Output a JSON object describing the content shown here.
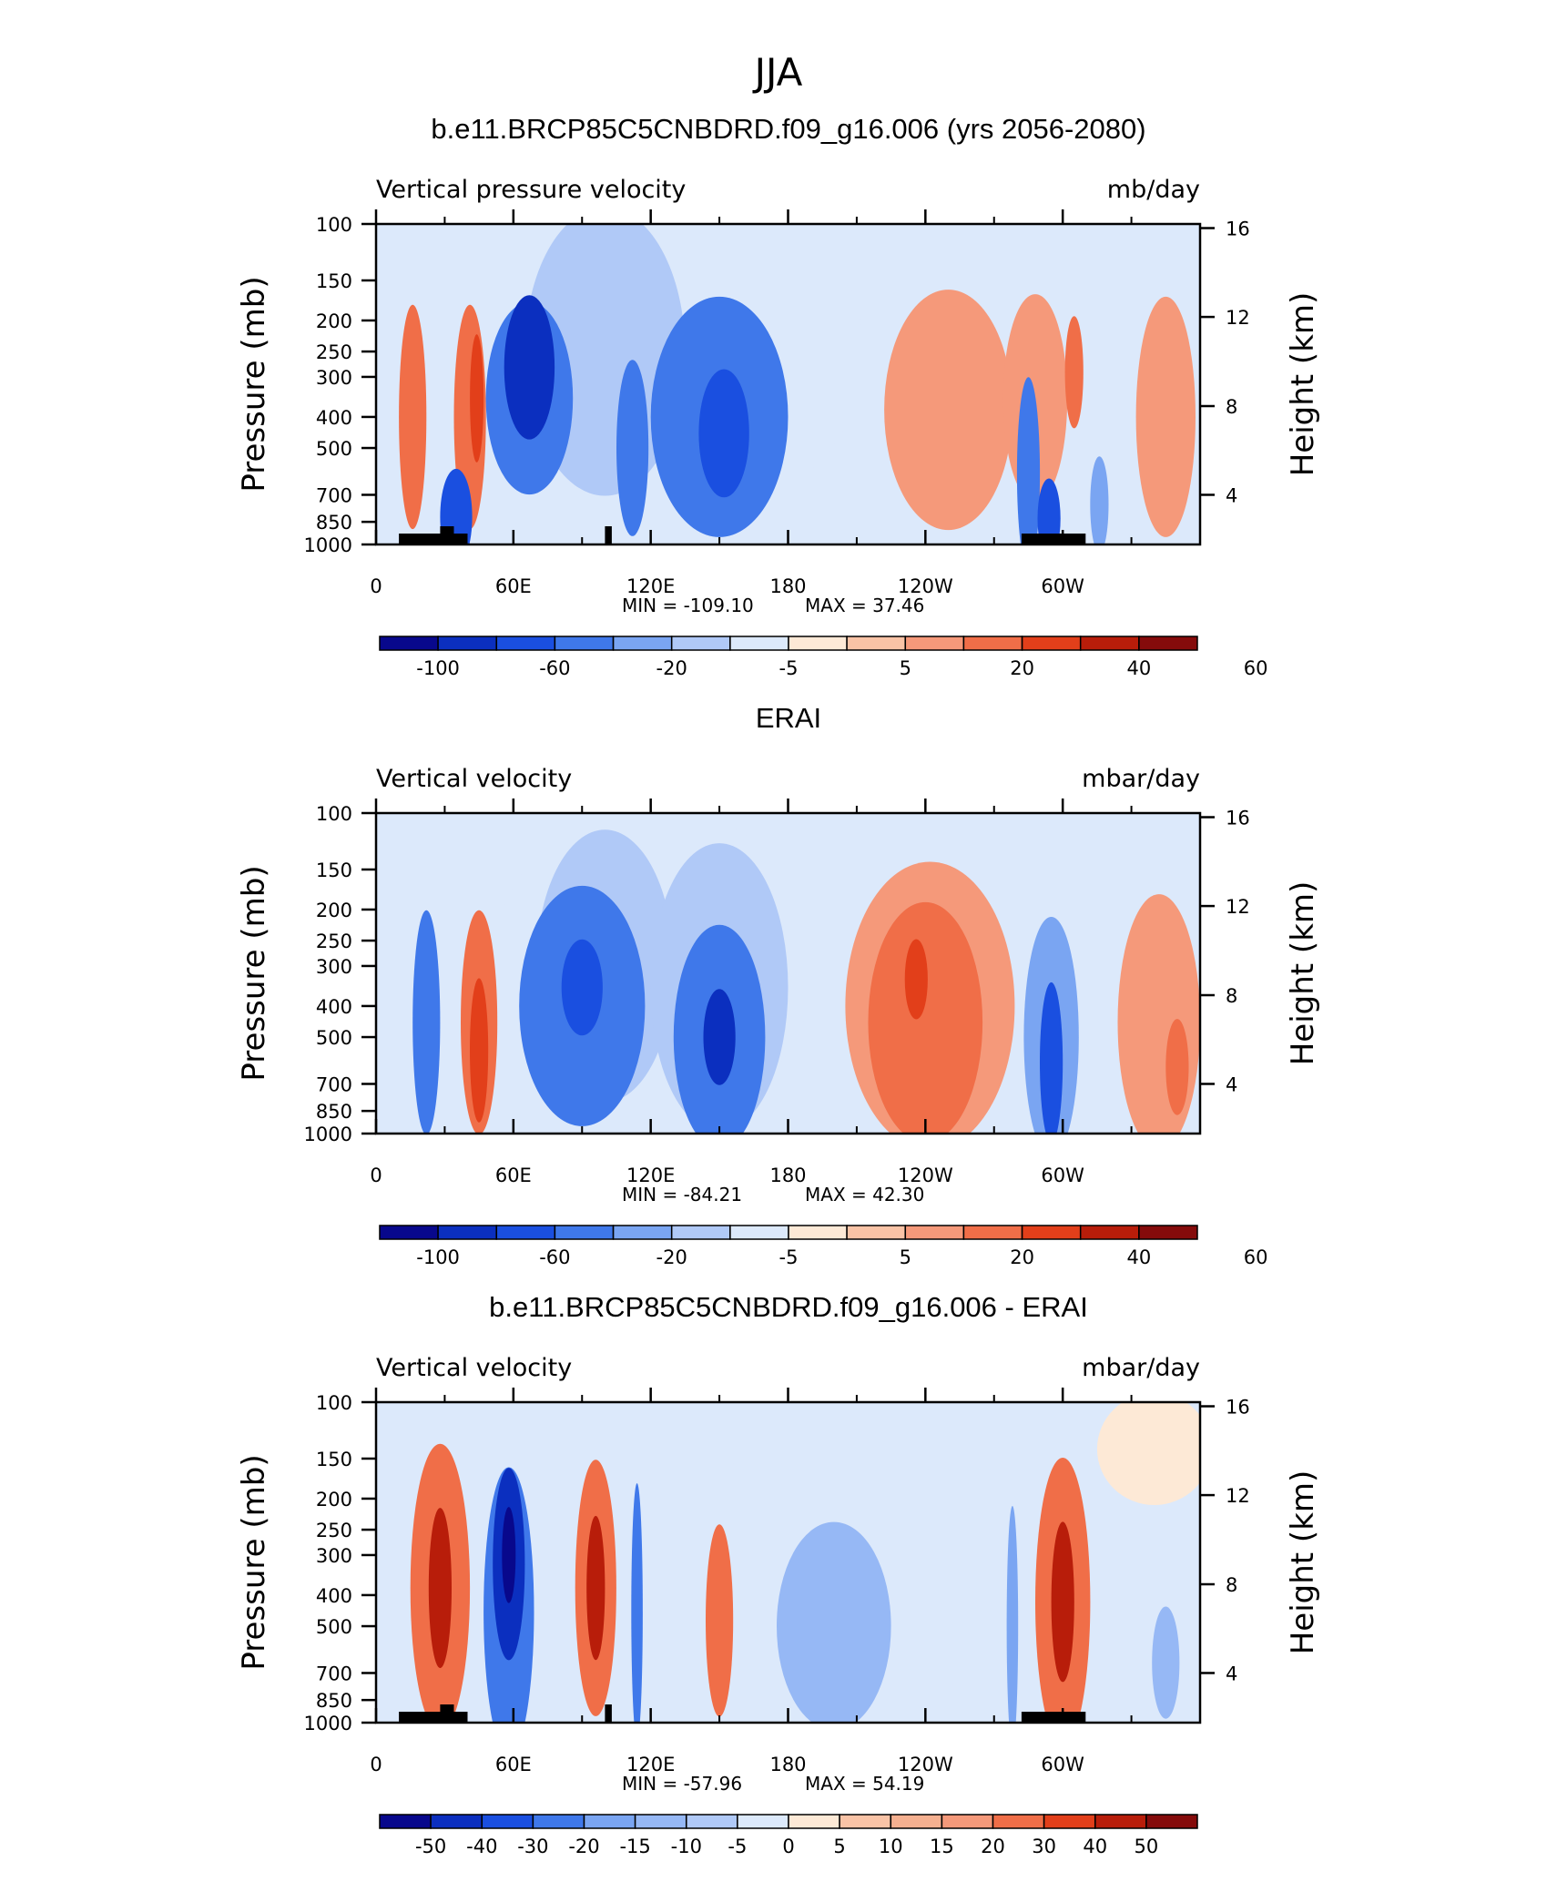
{
  "figure": {
    "title": "JJA",
    "colors": {
      "fourteen_levels": [
        "#08088c",
        "#0b2fbf",
        "#1a4fe0",
        "#3f78ea",
        "#7aa5f2",
        "#b0c9f7",
        "#dce9fb",
        "#fde9d6",
        "#f9c3a6",
        "#f5997a",
        "#f06e48",
        "#e23f1a",
        "#b81d0a",
        "#850b0b"
      ],
      "sixteen_levels": [
        "#08088c",
        "#0b2fbf",
        "#1a4fe0",
        "#3f78ea",
        "#7aa5f2",
        "#96b8f5",
        "#b0c9f7",
        "#dce9fb",
        "#fde9d6",
        "#f9c3a6",
        "#f5b090",
        "#f5997a",
        "#f06e48",
        "#e23f1a",
        "#b81d0a",
        "#850b0b"
      ]
    }
  },
  "chart_data": [
    {
      "type": "heatmap",
      "panel_title": "b.e11.BRCP85C5CNBDRD.f09_g16.006 (yrs 2056-2080)",
      "variable": "Vertical pressure velocity",
      "units": "mb/day",
      "ylabel": "Pressure (mb)",
      "ylabel_right": "Height (km)",
      "x_ticks": [
        "0",
        "60E",
        "120E",
        "180",
        "120W",
        "60W"
      ],
      "x_range_deg": [
        0,
        360
      ],
      "y_ticks": [
        "100",
        "150",
        "200",
        "250",
        "300",
        "400",
        "500",
        "700",
        "850",
        "1000"
      ],
      "y_range": [
        100,
        1000
      ],
      "log_scale_y": true,
      "height_ticks": [
        "16",
        "12",
        "8",
        "4"
      ],
      "min_text": "MIN = -109.10",
      "max_text": "MAX = 37.46",
      "colorbar_labels": [
        "-100",
        "-60",
        "-20",
        "-5",
        "5",
        "20",
        "40",
        "60"
      ],
      "colorbar_label_boxes": [
        1,
        3,
        5,
        7,
        9,
        11,
        13,
        15
      ],
      "palette": "fourteen_levels",
      "features": [
        {
          "lon": 67,
          "p": 280,
          "width_deg": 22,
          "depth": 0.9,
          "level": 1
        },
        {
          "lon": 67,
          "p": 350,
          "width_deg": 38,
          "depth": 1.2,
          "level": 3
        },
        {
          "lon": 150,
          "p": 400,
          "width_deg": 60,
          "depth": 1.5,
          "level": 3
        },
        {
          "lon": 152,
          "p": 450,
          "width_deg": 22,
          "depth": 0.8,
          "level": 2
        },
        {
          "lon": 112,
          "p": 500,
          "width_deg": 14,
          "depth": 1.1,
          "level": 3
        },
        {
          "lon": 100,
          "p": 250,
          "width_deg": 70,
          "depth": 1.8,
          "level": 5
        },
        {
          "lon": 143,
          "p": 250,
          "width_deg": 140,
          "depth": 2.0,
          "level": 6
        },
        {
          "lon": 285,
          "p": 600,
          "width_deg": 10,
          "depth": 1.2,
          "level": 3
        },
        {
          "lon": 316,
          "p": 750,
          "width_deg": 8,
          "depth": 0.6,
          "level": 4
        },
        {
          "lon": 16,
          "p": 400,
          "width_deg": 12,
          "depth": 1.4,
          "level": 10
        },
        {
          "lon": 41,
          "p": 400,
          "width_deg": 14,
          "depth": 1.4,
          "level": 10
        },
        {
          "lon": 44,
          "p": 350,
          "width_deg": 6,
          "depth": 0.8,
          "level": 11
        },
        {
          "lon": 250,
          "p": 380,
          "width_deg": 56,
          "depth": 1.5,
          "level": 9
        },
        {
          "lon": 288,
          "p": 350,
          "width_deg": 28,
          "depth": 1.3,
          "level": 9
        },
        {
          "lon": 305,
          "p": 290,
          "width_deg": 8,
          "depth": 0.7,
          "level": 10
        },
        {
          "lon": 345,
          "p": 400,
          "width_deg": 26,
          "depth": 1.5,
          "level": 9
        },
        {
          "lon": 35,
          "p": 820,
          "width_deg": 14,
          "depth": 0.6,
          "level": 2
        },
        {
          "lon": 294,
          "p": 830,
          "width_deg": 10,
          "depth": 0.5,
          "level": 2
        }
      ],
      "land_bars": [
        [
          10,
          40
        ],
        [
          28,
          34
        ],
        [
          100,
          103
        ],
        [
          282,
          310
        ]
      ]
    },
    {
      "type": "heatmap",
      "panel_title": "ERAI",
      "variable": "Vertical velocity",
      "units": "mbar/day",
      "ylabel": "Pressure (mb)",
      "ylabel_right": "Height (km)",
      "x_ticks": [
        "0",
        "60E",
        "120E",
        "180",
        "120W",
        "60W"
      ],
      "x_range_deg": [
        0,
        360
      ],
      "y_ticks": [
        "100",
        "150",
        "200",
        "250",
        "300",
        "400",
        "500",
        "700",
        "850",
        "1000"
      ],
      "y_range": [
        100,
        1000
      ],
      "log_scale_y": true,
      "height_ticks": [
        "16",
        "12",
        "8",
        "4"
      ],
      "min_text": "MIN = -84.21",
      "max_text": "MAX = 42.30",
      "colorbar_labels": [
        "-100",
        "-60",
        "-20",
        "-5",
        "5",
        "20",
        "40",
        "60"
      ],
      "colorbar_label_boxes": [
        1,
        3,
        5,
        7,
        9,
        11,
        13,
        15
      ],
      "palette": "fourteen_levels",
      "features": [
        {
          "lon": 22,
          "p": 450,
          "width_deg": 12,
          "depth": 1.4,
          "level": 3
        },
        {
          "lon": 90,
          "p": 400,
          "width_deg": 55,
          "depth": 1.5,
          "level": 3
        },
        {
          "lon": 150,
          "p": 500,
          "width_deg": 40,
          "depth": 1.4,
          "level": 3
        },
        {
          "lon": 150,
          "p": 500,
          "width_deg": 14,
          "depth": 0.6,
          "level": 1
        },
        {
          "lon": 90,
          "p": 350,
          "width_deg": 18,
          "depth": 0.6,
          "level": 2
        },
        {
          "lon": 121,
          "p": 300,
          "width_deg": 140,
          "depth": 2.0,
          "level": 6
        },
        {
          "lon": 100,
          "p": 300,
          "width_deg": 60,
          "depth": 1.7,
          "level": 5
        },
        {
          "lon": 150,
          "p": 350,
          "width_deg": 60,
          "depth": 1.8,
          "level": 5
        },
        {
          "lon": 295,
          "p": 500,
          "width_deg": 24,
          "depth": 1.5,
          "level": 4
        },
        {
          "lon": 295,
          "p": 600,
          "width_deg": 10,
          "depth": 1.0,
          "level": 2
        },
        {
          "lon": 45,
          "p": 450,
          "width_deg": 16,
          "depth": 1.4,
          "level": 10
        },
        {
          "lon": 45,
          "p": 550,
          "width_deg": 8,
          "depth": 0.9,
          "level": 11
        },
        {
          "lon": 242,
          "p": 400,
          "width_deg": 74,
          "depth": 1.8,
          "level": 9
        },
        {
          "lon": 240,
          "p": 450,
          "width_deg": 50,
          "depth": 1.5,
          "level": 10
        },
        {
          "lon": 236,
          "p": 330,
          "width_deg": 10,
          "depth": 0.5,
          "level": 11
        },
        {
          "lon": 342,
          "p": 450,
          "width_deg": 36,
          "depth": 1.6,
          "level": 9
        },
        {
          "lon": 350,
          "p": 620,
          "width_deg": 10,
          "depth": 0.6,
          "level": 10
        }
      ],
      "land_bars": []
    },
    {
      "type": "heatmap",
      "panel_title": "b.e11.BRCP85C5CNBDRD.f09_g16.006 - ERAI",
      "variable": "Vertical velocity",
      "units": "mbar/day",
      "ylabel": "Pressure (mb)",
      "ylabel_right": "Height (km)",
      "x_ticks": [
        "0",
        "60E",
        "120E",
        "180",
        "120W",
        "60W"
      ],
      "x_range_deg": [
        0,
        360
      ],
      "y_ticks": [
        "100",
        "150",
        "200",
        "250",
        "300",
        "400",
        "500",
        "700",
        "850",
        "1000"
      ],
      "y_range": [
        100,
        1000
      ],
      "log_scale_y": true,
      "height_ticks": [
        "16",
        "12",
        "8",
        "4"
      ],
      "min_text": "MIN = -57.96",
      "max_text": "MAX = 54.19",
      "colorbar_labels": [
        "-50",
        "-40",
        "-30",
        "-20",
        "-15",
        "-10",
        "-5",
        "0",
        "5",
        "10",
        "15",
        "20",
        "30",
        "40",
        "50"
      ],
      "colorbar_label_boxes": [
        1,
        2,
        3,
        4,
        5,
        6,
        7,
        8,
        9,
        10,
        11,
        12,
        13,
        14,
        15
      ],
      "palette": "sixteen_levels",
      "features": [
        {
          "lon": 58,
          "p": 320,
          "width_deg": 14,
          "depth": 1.2,
          "level": 1
        },
        {
          "lon": 58,
          "p": 300,
          "width_deg": 6,
          "depth": 0.6,
          "level": 0
        },
        {
          "lon": 58,
          "p": 450,
          "width_deg": 22,
          "depth": 1.8,
          "level": 3
        },
        {
          "lon": 114,
          "p": 450,
          "width_deg": 5,
          "depth": 1.6,
          "level": 3
        },
        {
          "lon": 200,
          "p": 500,
          "width_deg": 50,
          "depth": 1.3,
          "level": 5
        },
        {
          "lon": 185,
          "p": 450,
          "width_deg": 150,
          "depth": 2.0,
          "level": 7
        },
        {
          "lon": 278,
          "p": 500,
          "width_deg": 5,
          "depth": 1.5,
          "level": 4
        },
        {
          "lon": 345,
          "p": 650,
          "width_deg": 12,
          "depth": 0.7,
          "level": 5
        },
        {
          "lon": 28,
          "p": 380,
          "width_deg": 26,
          "depth": 1.8,
          "level": 12
        },
        {
          "lon": 28,
          "p": 380,
          "width_deg": 10,
          "depth": 1.0,
          "level": 14
        },
        {
          "lon": 96,
          "p": 380,
          "width_deg": 18,
          "depth": 1.6,
          "level": 12
        },
        {
          "lon": 96,
          "p": 380,
          "width_deg": 8,
          "depth": 0.9,
          "level": 14
        },
        {
          "lon": 150,
          "p": 480,
          "width_deg": 12,
          "depth": 1.2,
          "level": 12
        },
        {
          "lon": 300,
          "p": 420,
          "width_deg": 24,
          "depth": 1.8,
          "level": 12
        },
        {
          "lon": 300,
          "p": 420,
          "width_deg": 10,
          "depth": 1.0,
          "level": 14
        },
        {
          "lon": 340,
          "p": 140,
          "width_deg": 50,
          "depth": 0.7,
          "level": 8
        }
      ],
      "land_bars": [
        [
          10,
          40
        ],
        [
          28,
          34
        ],
        [
          100,
          103
        ],
        [
          282,
          310
        ]
      ]
    }
  ]
}
